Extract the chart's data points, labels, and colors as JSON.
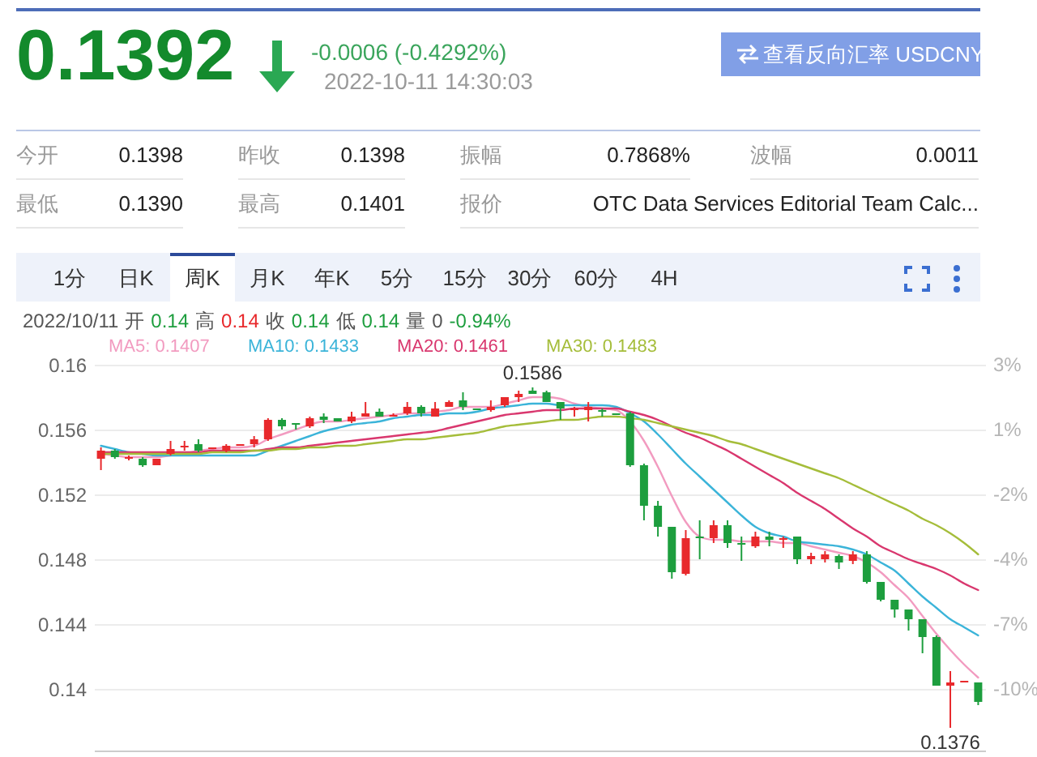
{
  "chart_data": {
    "type": "candlestick",
    "categories": [
      null,
      null,
      null,
      null,
      null,
      null,
      null,
      null,
      null,
      null,
      null,
      null,
      null,
      null,
      null,
      null,
      null,
      null,
      null,
      null,
      null,
      null,
      null,
      null,
      null,
      null,
      null,
      null,
      null,
      null,
      null,
      null,
      null,
      null,
      null,
      null,
      null,
      null,
      null,
      null,
      null,
      null,
      null,
      null,
      null,
      null,
      null,
      null,
      null,
      null,
      null,
      null,
      null,
      null,
      null,
      null,
      null,
      null,
      null,
      null,
      null,
      null,
      null,
      null
    ],
    "ohlc": [
      [
        0.1542,
        0.1549,
        0.1535,
        0.1547
      ],
      [
        0.1547,
        0.1548,
        0.1542,
        0.1543
      ],
      [
        0.1542,
        0.1544,
        0.1541,
        0.1543
      ],
      [
        0.1542,
        0.1543,
        0.1537,
        0.1538
      ],
      [
        0.1538,
        0.1542,
        0.1538,
        0.1542
      ],
      [
        0.1545,
        0.1553,
        0.1544,
        0.1548
      ],
      [
        0.1549,
        0.1553,
        0.1547,
        0.155
      ],
      [
        0.1551,
        0.1554,
        0.1546,
        0.1547
      ],
      [
        0.1548,
        0.1549,
        0.1548,
        0.1549
      ],
      [
        0.1547,
        0.1551,
        0.1546,
        0.155
      ],
      [
        0.155,
        0.1551,
        0.155,
        0.1551
      ],
      [
        0.1551,
        0.1556,
        0.1549,
        0.1554
      ],
      [
        0.1554,
        0.1567,
        0.1553,
        0.1566
      ],
      [
        0.1566,
        0.1567,
        0.156,
        0.1562
      ],
      [
        0.1564,
        0.1564,
        0.156,
        0.1563
      ],
      [
        0.1562,
        0.1568,
        0.1561,
        0.1567
      ],
      [
        0.1568,
        0.157,
        0.1564,
        0.1566
      ],
      [
        0.1567,
        0.1567,
        0.1565,
        0.1565
      ],
      [
        0.1565,
        0.1571,
        0.1564,
        0.1568
      ],
      [
        0.1568,
        0.1577,
        0.1568,
        0.157
      ],
      [
        0.1571,
        0.1573,
        0.1568,
        0.1568
      ],
      [
        0.1568,
        0.157,
        0.1568,
        0.1569
      ],
      [
        0.157,
        0.1577,
        0.1569,
        0.1574
      ],
      [
        0.1574,
        0.1575,
        0.1568,
        0.157
      ],
      [
        0.1568,
        0.1577,
        0.1568,
        0.1573
      ],
      [
        0.1574,
        0.1578,
        0.1574,
        0.1577
      ],
      [
        0.1578,
        0.1583,
        0.1572,
        0.1574
      ],
      [
        0.1573,
        0.1573,
        0.1572,
        0.1572
      ],
      [
        0.1572,
        0.1578,
        0.1571,
        0.1574
      ],
      [
        0.1575,
        0.158,
        0.1574,
        0.158
      ],
      [
        0.158,
        0.1584,
        0.1577,
        0.1582
      ],
      [
        0.1584,
        0.1586,
        0.1582,
        0.1582
      ],
      [
        0.1583,
        0.1584,
        0.1577,
        0.1577
      ],
      [
        0.1577,
        0.1577,
        0.1566,
        0.1573
      ],
      [
        0.1572,
        0.1574,
        0.1568,
        0.1573
      ],
      [
        0.1572,
        0.1577,
        0.1565,
        0.1574
      ],
      [
        0.1572,
        0.1573,
        0.1568,
        0.1571
      ],
      [
        0.157,
        0.157,
        0.1569,
        0.1569
      ],
      [
        0.157,
        0.1571,
        0.1537,
        0.1538
      ],
      [
        0.1538,
        0.1539,
        0.1504,
        0.1513
      ],
      [
        0.1513,
        0.1516,
        0.1494,
        0.15
      ],
      [
        0.15,
        0.15,
        0.1468,
        0.1472
      ],
      [
        0.1471,
        0.1498,
        0.147,
        0.1493
      ],
      [
        0.1494,
        0.1504,
        0.148,
        0.1493
      ],
      [
        0.1493,
        0.1504,
        0.149,
        0.1501
      ],
      [
        0.1501,
        0.1504,
        0.1487,
        0.149
      ],
      [
        0.149,
        0.1494,
        0.1479,
        0.1489
      ],
      [
        0.1488,
        0.1497,
        0.1487,
        0.1494
      ],
      [
        0.1494,
        0.1497,
        0.1488,
        0.1492
      ],
      [
        0.1492,
        0.1494,
        0.1487,
        0.1493
      ],
      [
        0.1494,
        0.1494,
        0.1477,
        0.148
      ],
      [
        0.148,
        0.1484,
        0.1477,
        0.1482
      ],
      [
        0.148,
        0.1485,
        0.1478,
        0.1483
      ],
      [
        0.1482,
        0.1483,
        0.1474,
        0.1478
      ],
      [
        0.1479,
        0.1485,
        0.1477,
        0.1483
      ],
      [
        0.1483,
        0.1485,
        0.1465,
        0.1466
      ],
      [
        0.1466,
        0.1466,
        0.1454,
        0.1455
      ],
      [
        0.1455,
        0.1455,
        0.1444,
        0.1449
      ],
      [
        0.1449,
        0.1449,
        0.1436,
        0.1443
      ],
      [
        0.1443,
        0.1443,
        0.1422,
        0.1432
      ],
      [
        0.1432,
        0.1433,
        0.1402,
        0.1402
      ],
      [
        0.1402,
        0.1411,
        0.1376,
        0.1404
      ],
      [
        0.1404,
        0.1405,
        0.1404,
        0.1405
      ],
      [
        0.1404,
        0.1404,
        0.139,
        0.1392
      ]
    ],
    "colors": [
      "#e8292c",
      "#1d9e3e",
      "#e8292c",
      "#1d9e3e",
      "#e8292c",
      "#e8292c",
      "#e8292c",
      "#1d9e3e",
      "#e8292c",
      "#e8292c",
      "#e8292c",
      "#e8292c",
      "#e8292c",
      "#1d9e3e",
      "#1d9e3e",
      "#e8292c",
      "#1d9e3e",
      "#1d9e3e",
      "#e8292c",
      "#e8292c",
      "#1d9e3e",
      "#e8292c",
      "#e8292c",
      "#1d9e3e",
      "#e8292c",
      "#e8292c",
      "#1d9e3e",
      "#1d9e3e",
      "#e8292c",
      "#e8292c",
      "#e8292c",
      "#1d9e3e",
      "#1d9e3e",
      "#1d9e3e",
      "#e8292c",
      "#e8292c",
      "#1d9e3e",
      "#1d9e3e",
      "#1d9e3e",
      "#1d9e3e",
      "#1d9e3e",
      "#1d9e3e",
      "#e8292c",
      "#1d9e3e",
      "#e8292c",
      "#1d9e3e",
      "#1d9e3e",
      "#e8292c",
      "#1d9e3e",
      "#e8292c",
      "#1d9e3e",
      "#e8292c",
      "#e8292c",
      "#1d9e3e",
      "#e8292c",
      "#1d9e3e",
      "#1d9e3e",
      "#1d9e3e",
      "#1d9e3e",
      "#1d9e3e",
      "#1d9e3e",
      "#e8292c",
      "#e8292c",
      "#1d9e3e"
    ],
    "series": [
      {
        "type": "line",
        "name": "MA5: 0.1407",
        "color": "#f29bc0",
        "values": [
          0.1545,
          0.1544,
          0.1543,
          0.1543,
          0.1543,
          0.1544,
          0.1545,
          0.1547,
          0.1548,
          0.1549,
          0.1549,
          0.155,
          0.1554,
          0.1557,
          0.156,
          0.1563,
          0.1565,
          0.1565,
          0.1566,
          0.1567,
          0.1568,
          0.1569,
          0.157,
          0.157,
          0.1571,
          0.1572,
          0.1574,
          0.1574,
          0.1574,
          0.1576,
          0.1578,
          0.158,
          0.158,
          0.1579,
          0.1576,
          0.1574,
          0.1573,
          0.1572,
          0.1565,
          0.1553,
          0.1537,
          0.1519,
          0.1503,
          0.1494,
          0.1492,
          0.1492,
          0.1491,
          0.1491,
          0.1491,
          0.149,
          0.149,
          0.1488,
          0.1486,
          0.1484,
          0.1482,
          0.1478,
          0.1472,
          0.1464,
          0.1456,
          0.1445,
          0.1434,
          0.1424,
          0.1415,
          0.1407
        ]
      },
      {
        "type": "line",
        "name": "MA10: 0.1433",
        "color": "#3bb4d9",
        "values": [
          0.155,
          0.1548,
          0.1546,
          0.1545,
          0.1544,
          0.1544,
          0.1544,
          0.1544,
          0.1544,
          0.1544,
          0.1544,
          0.1544,
          0.1547,
          0.155,
          0.1553,
          0.1556,
          0.1559,
          0.1561,
          0.1563,
          0.1564,
          0.1565,
          0.1567,
          0.1568,
          0.1569,
          0.1569,
          0.157,
          0.157,
          0.1571,
          0.1573,
          0.1574,
          0.1575,
          0.1576,
          0.1576,
          0.1575,
          0.1575,
          0.1575,
          0.1575,
          0.1574,
          0.157,
          0.1565,
          0.1557,
          0.1548,
          0.1539,
          0.1531,
          0.1523,
          0.1515,
          0.1507,
          0.15,
          0.1496,
          0.1494,
          0.1491,
          0.149,
          0.1489,
          0.1488,
          0.1486,
          0.1483,
          0.1478,
          0.1473,
          0.1465,
          0.1457,
          0.145,
          0.1443,
          0.1438,
          0.1433
        ]
      },
      {
        "type": "line",
        "name": "MA20: 0.1461",
        "color": "#d9376e",
        "values": [
          0.1546,
          0.1546,
          0.1546,
          0.1546,
          0.1546,
          0.1546,
          0.1546,
          0.1546,
          0.1547,
          0.1547,
          0.1547,
          0.1547,
          0.1548,
          0.1549,
          0.1549,
          0.155,
          0.1551,
          0.1552,
          0.1553,
          0.1554,
          0.1555,
          0.1556,
          0.1557,
          0.1558,
          0.1559,
          0.1561,
          0.1563,
          0.1565,
          0.1567,
          0.1569,
          0.157,
          0.1571,
          0.1572,
          0.1572,
          0.1573,
          0.1573,
          0.1573,
          0.1573,
          0.1571,
          0.1569,
          0.1566,
          0.1562,
          0.1558,
          0.1555,
          0.1551,
          0.1547,
          0.1542,
          0.1537,
          0.1532,
          0.1527,
          0.1521,
          0.1516,
          0.1511,
          0.1505,
          0.1499,
          0.1494,
          0.1488,
          0.1484,
          0.148,
          0.1477,
          0.1474,
          0.147,
          0.1465,
          0.1461
        ]
      },
      {
        "type": "line",
        "name": "MA30: 0.1483",
        "color": "#a5bd3a",
        "values": [
          0.1545,
          0.1545,
          0.1545,
          0.1545,
          0.1545,
          0.1545,
          0.1545,
          0.1545,
          0.1546,
          0.1546,
          0.1546,
          0.1547,
          0.1547,
          0.1548,
          0.1548,
          0.1549,
          0.1549,
          0.155,
          0.155,
          0.1551,
          0.1552,
          0.1553,
          0.1554,
          0.1554,
          0.1555,
          0.1556,
          0.1557,
          0.1558,
          0.156,
          0.1562,
          0.1563,
          0.1564,
          0.1565,
          0.1566,
          0.1566,
          0.1567,
          0.1568,
          0.1568,
          0.1567,
          0.1566,
          0.1564,
          0.1562,
          0.156,
          0.1558,
          0.1556,
          0.1553,
          0.1551,
          0.1548,
          0.1545,
          0.1542,
          0.1539,
          0.1536,
          0.1533,
          0.153,
          0.1526,
          0.1522,
          0.1518,
          0.1514,
          0.151,
          0.1505,
          0.1501,
          0.1496,
          0.149,
          0.1483
        ]
      }
    ],
    "ylim": [
      0.1362,
      0.1602
    ],
    "yticks": [
      0.14,
      0.144,
      0.148,
      0.152,
      0.156,
      0.16
    ],
    "y2lim": [
      -12.07,
      3.42
    ],
    "y2ticks": [
      {
        "value": 3.29,
        "label": "3%"
      },
      {
        "value": 0.71,
        "label": "1%"
      },
      {
        "value": -1.87,
        "label": "-2%"
      },
      {
        "value": -4.45,
        "label": "-4%"
      },
      {
        "value": -7.04,
        "label": "-7%"
      },
      {
        "value": -9.62,
        "label": "-10%"
      }
    ],
    "grid": "y",
    "legend": "top left",
    "annotations": [
      "0.1392",
      "-0.0006 (-0.4292%)",
      "2022-10-11 14:30:03",
      "查看反向汇率 USDCNY",
      "今开",
      "0.1398",
      "昨收",
      "0.1398",
      "振幅",
      "0.7868%",
      "波幅",
      "0.0011",
      "最低",
      "0.1390",
      "最高",
      "0.1401",
      "报价",
      "OTC Data Services Editorial Team Calc...",
      "1分",
      "日K",
      "周K",
      "月K",
      "年K",
      "5分",
      "15分",
      "30分",
      "60分",
      "4H",
      "2022/10/11 开 0.14 高 0.14 收 0.14 低 0.14 量 0 -0.94%",
      {
        "text": "0.1586",
        "y": 0.1586
      },
      {
        "text": "0.1376",
        "y": 0.1376
      }
    ]
  }
}
